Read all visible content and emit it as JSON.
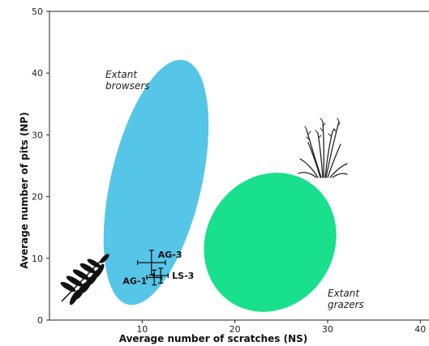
{
  "chart_data": {
    "type": "scatter",
    "title": "",
    "xlabel": "Average number of scratches (NS)",
    "ylabel": "Average number of pits (NP)",
    "xlim": [
      0,
      40
    ],
    "ylim": [
      0,
      50
    ],
    "xticks": [
      "10",
      "20",
      "30",
      "40"
    ],
    "yticks": [
      "0",
      "10",
      "20",
      "30",
      "40",
      "50"
    ],
    "grid": false,
    "regions": [
      {
        "label_lines": [
          "Extant",
          "browsers"
        ],
        "color": "#56c6e8",
        "cx": 11.5,
        "cy": 22.3,
        "rx": 4.9,
        "ry": 20.3,
        "angle_deg": 13
      },
      {
        "label_lines": [
          "Extant",
          "grazers"
        ],
        "color": "#19e08c",
        "cx": 23.8,
        "cy": 12.6,
        "rx": 6.9,
        "ry": 11.6,
        "angle_deg": 32
      }
    ],
    "points": [
      {
        "label": "AG-3",
        "x": 11.0,
        "y": 9.3,
        "xerr": 1.5,
        "yerr": 2.0
      },
      {
        "label": "AG-1",
        "x": 11.3,
        "y": 6.9,
        "xerr": 0.8,
        "yerr": 1.2
      },
      {
        "label": "LS-3",
        "x": 12.0,
        "y": 7.2,
        "xerr": 0.8,
        "yerr": 1.2
      }
    ],
    "icons": [
      "fern-leaf-silhouette-icon",
      "grass-silhouette-icon"
    ]
  }
}
